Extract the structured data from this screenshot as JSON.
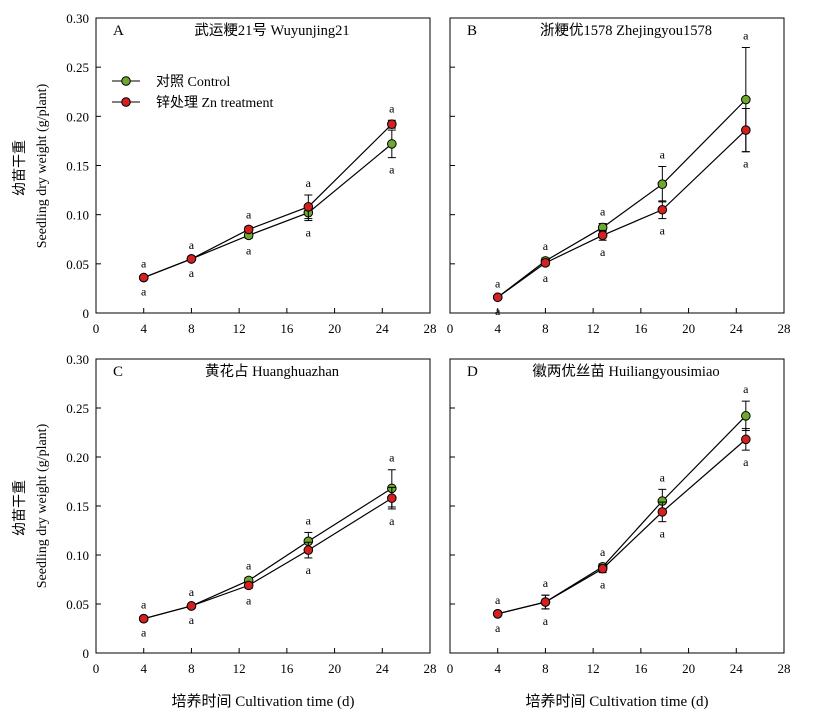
{
  "figure": {
    "xlabel": "培养时间 Cultivation time (d)",
    "ylabel_cn": "幼苗干重",
    "ylabel_en": "Seedling dry weight (g/plant)",
    "legend": [
      {
        "label": "对照 Control",
        "color": "#6fa82e"
      },
      {
        "label": "锌处理 Zn treatment",
        "color": "#d42020"
      }
    ]
  },
  "chart_data": [
    {
      "type": "line",
      "panel_label": "A",
      "title": "武运粳21号 Wuyunjing21",
      "xlabel": "",
      "ylabel": "幼苗干重 Seedling dry weight (g/plant)",
      "xlim": [
        0,
        28
      ],
      "ylim": [
        0,
        0.3
      ],
      "xticks": [
        0,
        4,
        8,
        12,
        16,
        20,
        24,
        28
      ],
      "yticks": [
        "0",
        "0.05",
        "0.10",
        "0.15",
        "0.20",
        "0.25",
        "0.30"
      ],
      "x": [
        4,
        8,
        12.8,
        17.8,
        24.8
      ],
      "series": [
        {
          "name": "对照 Control",
          "color": "#6fa82e",
          "values": [
            0.036,
            0.055,
            0.079,
            0.102,
            0.172
          ],
          "err": [
            0.002,
            0.002,
            0.003,
            0.008,
            0.014
          ],
          "sig": [
            "a",
            "a",
            "a",
            "a",
            "a"
          ]
        },
        {
          "name": "锌处理 Zn treatment",
          "color": "#d42020",
          "values": [
            0.036,
            0.055,
            0.085,
            0.108,
            0.192
          ],
          "err": [
            0.002,
            0.002,
            0.003,
            0.012,
            0.004
          ],
          "sig": [
            "a",
            "a",
            "a",
            "a",
            "a"
          ]
        }
      ]
    },
    {
      "type": "line",
      "panel_label": "B",
      "title": "浙粳优1578 Zhejingyou1578",
      "xlabel": "",
      "ylabel": "",
      "xlim": [
        0,
        28
      ],
      "ylim": [
        0,
        0.3
      ],
      "xticks": [
        0,
        4,
        8,
        12,
        16,
        20,
        24,
        28
      ],
      "yticks": [],
      "x": [
        4,
        8,
        12.8,
        17.8,
        24.8
      ],
      "series": [
        {
          "name": "对照 Control",
          "color": "#6fa82e",
          "values": [
            0.016,
            0.053,
            0.087,
            0.131,
            0.217
          ],
          "err": [
            0.002,
            0.003,
            0.004,
            0.018,
            0.053
          ],
          "sig": [
            "a",
            "a",
            "a",
            "a",
            "a"
          ]
        },
        {
          "name": "锌处理 Zn treatment",
          "color": "#d42020",
          "values": [
            0.016,
            0.051,
            0.079,
            0.105,
            0.186
          ],
          "err": [
            0.002,
            0.003,
            0.005,
            0.009,
            0.022
          ],
          "sig": [
            "a",
            "a",
            "a",
            "a",
            "a"
          ]
        }
      ]
    },
    {
      "type": "line",
      "panel_label": "C",
      "title": "黄花占 Huanghuazhan",
      "xlabel": "培养时间 Cultivation time (d)",
      "ylabel": "幼苗干重 Seedling dry weight (g/plant)",
      "xlim": [
        0,
        28
      ],
      "ylim": [
        0,
        0.3
      ],
      "xticks": [
        0,
        4,
        8,
        12,
        16,
        20,
        24,
        28
      ],
      "yticks": [
        "0",
        "0.05",
        "0.10",
        "0.15",
        "0.20",
        "0.25",
        "0.30"
      ],
      "x": [
        4,
        8,
        12.8,
        17.8,
        24.8
      ],
      "series": [
        {
          "name": "对照 Control",
          "color": "#6fa82e",
          "values": [
            0.035,
            0.048,
            0.074,
            0.114,
            0.168
          ],
          "err": [
            0.002,
            0.002,
            0.003,
            0.009,
            0.019
          ],
          "sig": [
            "a",
            "a",
            "a",
            "a",
            "a"
          ]
        },
        {
          "name": "锌处理 Zn treatment",
          "color": "#d42020",
          "values": [
            0.035,
            0.048,
            0.069,
            0.105,
            0.158
          ],
          "err": [
            0.002,
            0.002,
            0.003,
            0.008,
            0.011
          ],
          "sig": [
            "a",
            "a",
            "a",
            "a",
            "a"
          ]
        }
      ]
    },
    {
      "type": "line",
      "panel_label": "D",
      "title": "徽两优丝苗 Huiliangyousimiao",
      "xlabel": "培养时间 Cultivation time (d)",
      "ylabel": "",
      "xlim": [
        0,
        28
      ],
      "ylim": [
        0,
        0.3
      ],
      "xticks": [
        0,
        4,
        8,
        12,
        16,
        20,
        24,
        28
      ],
      "yticks": [],
      "x": [
        4,
        8,
        12.8,
        17.8,
        24.8
      ],
      "series": [
        {
          "name": "对照 Control",
          "color": "#6fa82e",
          "values": [
            0.04,
            0.052,
            0.088,
            0.155,
            0.242
          ],
          "err": [
            0.002,
            0.007,
            0.003,
            0.012,
            0.015
          ],
          "sig": [
            "a",
            "a",
            "a",
            "a",
            "a"
          ]
        },
        {
          "name": "锌处理 Zn treatment",
          "color": "#d42020",
          "values": [
            0.04,
            0.052,
            0.086,
            0.144,
            0.218
          ],
          "err": [
            0.002,
            0.007,
            0.004,
            0.01,
            0.011
          ],
          "sig": [
            "a",
            "a",
            "a",
            "a",
            "a"
          ]
        }
      ]
    }
  ]
}
